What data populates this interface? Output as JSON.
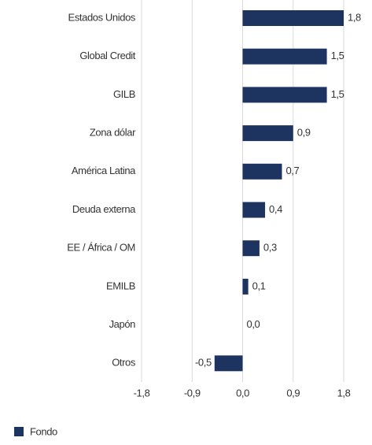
{
  "chart_data": {
    "type": "barh",
    "categories": [
      "Estados Unidos",
      "Global Credit",
      "GILB",
      "Zona dólar",
      "América Latina",
      "Deuda externa",
      "EE / África / OM",
      "EMILB",
      "Japón",
      "Otros"
    ],
    "series": [
      {
        "name": "Fondo",
        "color": "#1d3461",
        "values": [
          1.8,
          1.5,
          1.5,
          0.9,
          0.7,
          0.4,
          0.3,
          0.1,
          0.0,
          -0.5
        ],
        "value_labels": [
          "1,8",
          "1,5",
          "1,5",
          "0,9",
          "0,7",
          "0,4",
          "0,3",
          "0,1",
          "0,0",
          "-0,5"
        ]
      }
    ],
    "xlim": [
      -1.8,
      1.8
    ],
    "xticks": [
      {
        "value": -1.8,
        "label": "-1,8"
      },
      {
        "value": -0.9,
        "label": "-0,9"
      },
      {
        "value": 0,
        "label": "0,0"
      },
      {
        "value": 0.9,
        "label": "0,9"
      },
      {
        "value": 1.8,
        "label": "1,8"
      }
    ],
    "grid": true,
    "legend": "bottom-left"
  }
}
